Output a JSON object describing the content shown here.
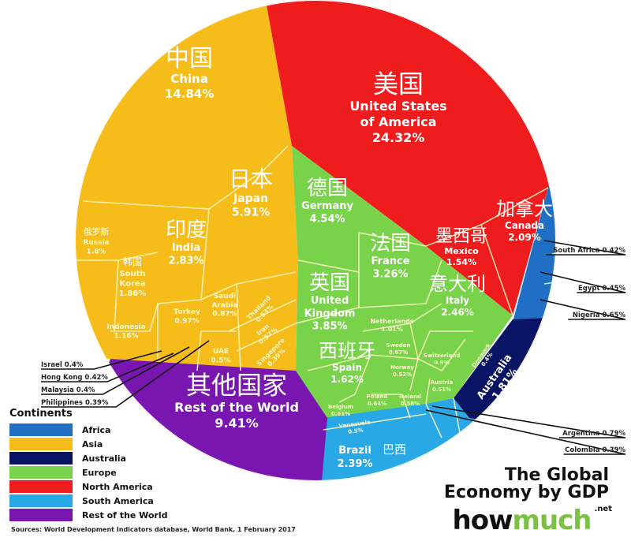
{
  "chart_data": {
    "type": "pie",
    "subtype": "voronoi-treemap",
    "title": "The Global Economy by GDP",
    "unit": "%",
    "legend_title": "Continents",
    "legend_position": "bottom-left",
    "continents": [
      {
        "name": "Africa",
        "color": "#1f6fc4"
      },
      {
        "name": "Asia",
        "color": "#f6bd1a"
      },
      {
        "name": "Australia",
        "color": "#0a1464"
      },
      {
        "name": "Europe",
        "color": "#78d24a"
      },
      {
        "name": "North America",
        "color": "#ee1c1c"
      },
      {
        "name": "South America",
        "color": "#29a8e6"
      },
      {
        "name": "Rest of the World",
        "color": "#7a16b0"
      }
    ],
    "items": [
      {
        "name": "China",
        "name_zh": "中国",
        "value": 14.84,
        "continent": "Asia"
      },
      {
        "name": "Japan",
        "name_zh": "日本",
        "value": 5.91,
        "continent": "Asia"
      },
      {
        "name": "India",
        "name_zh": "印度",
        "value": 2.83,
        "continent": "Asia"
      },
      {
        "name": "South Korea",
        "name_zh": "韩国",
        "value": 1.86,
        "continent": "Asia"
      },
      {
        "name": "Russia",
        "name_zh": "俄罗斯",
        "value": 1.8,
        "continent": "Asia"
      },
      {
        "name": "Indonesia",
        "value": 1.16,
        "continent": "Asia"
      },
      {
        "name": "Turkey",
        "value": 0.97,
        "continent": "Asia"
      },
      {
        "name": "Saudi Arabia",
        "value": 0.87,
        "continent": "Asia"
      },
      {
        "name": "Thailand",
        "value": 0.53,
        "continent": "Asia"
      },
      {
        "name": "Iran",
        "value": 0.57,
        "continent": "Asia"
      },
      {
        "name": "UAE",
        "value": 0.5,
        "continent": "Asia"
      },
      {
        "name": "Singapore",
        "value": 0.39,
        "continent": "Asia"
      },
      {
        "name": "Israel",
        "value": 0.4,
        "continent": "Asia"
      },
      {
        "name": "Hong Kong",
        "value": 0.42,
        "continent": "Asia"
      },
      {
        "name": "Malaysia",
        "value": 0.4,
        "continent": "Asia"
      },
      {
        "name": "Philippines",
        "value": 0.39,
        "continent": "Asia"
      },
      {
        "name": "United States of America",
        "name_zh": "美国",
        "value": 24.32,
        "continent": "North America"
      },
      {
        "name": "Canada",
        "name_zh": "加拿大",
        "value": 2.09,
        "continent": "North America"
      },
      {
        "name": "Mexico",
        "name_zh": "墨西哥",
        "value": 1.54,
        "continent": "North America"
      },
      {
        "name": "Germany",
        "name_zh": "德国",
        "value": 4.54,
        "continent": "Europe"
      },
      {
        "name": "United Kingdom",
        "name_zh": "英国",
        "value": 3.85,
        "continent": "Europe"
      },
      {
        "name": "France",
        "name_zh": "法国",
        "value": 3.26,
        "continent": "Europe"
      },
      {
        "name": "Italy",
        "name_zh": "意大利",
        "value": 2.46,
        "continent": "Europe"
      },
      {
        "name": "Spain",
        "name_zh": "西班牙",
        "value": 1.62,
        "continent": "Europe"
      },
      {
        "name": "Netherlands",
        "value": 1.01,
        "continent": "Europe"
      },
      {
        "name": "Sweden",
        "value": 0.67,
        "continent": "Europe"
      },
      {
        "name": "Switzerland",
        "value": 0.9,
        "continent": "Europe"
      },
      {
        "name": "Norway",
        "value": 0.52,
        "continent": "Europe"
      },
      {
        "name": "Austria",
        "value": 0.51,
        "continent": "Europe"
      },
      {
        "name": "Denmark",
        "value": 0.4,
        "continent": "Europe"
      },
      {
        "name": "Poland",
        "value": 0.64,
        "continent": "Europe"
      },
      {
        "name": "Ireland",
        "value": 0.38,
        "continent": "Europe"
      },
      {
        "name": "Belgium",
        "value": 0.61,
        "continent": "Europe"
      },
      {
        "name": "Australia",
        "value": 1.81,
        "continent": "Australia"
      },
      {
        "name": "South Africa",
        "value": 0.42,
        "continent": "Africa"
      },
      {
        "name": "Egypt",
        "value": 0.45,
        "continent": "Africa"
      },
      {
        "name": "Nigeria",
        "value": 0.65,
        "continent": "Africa"
      },
      {
        "name": "Brazil",
        "name_zh": "巴西",
        "value": 2.39,
        "continent": "South America"
      },
      {
        "name": "Venezuela",
        "value": 0.5,
        "continent": "South America"
      },
      {
        "name": "Argentina",
        "value": 0.79,
        "continent": "South America"
      },
      {
        "name": "Colombia",
        "value": 0.39,
        "continent": "South America"
      },
      {
        "name": "Rest of the World",
        "name_zh": "其他国家",
        "value": 9.41,
        "continent": "Rest of the World"
      }
    ]
  },
  "footer": {
    "title_line1": "The Global",
    "title_line2": "Economy by GDP",
    "brand_how": "how",
    "brand_much": "much",
    "brand_tld": ".net",
    "source": "Sources: World Development Indicators database, World Bank, 1 February 2017"
  }
}
